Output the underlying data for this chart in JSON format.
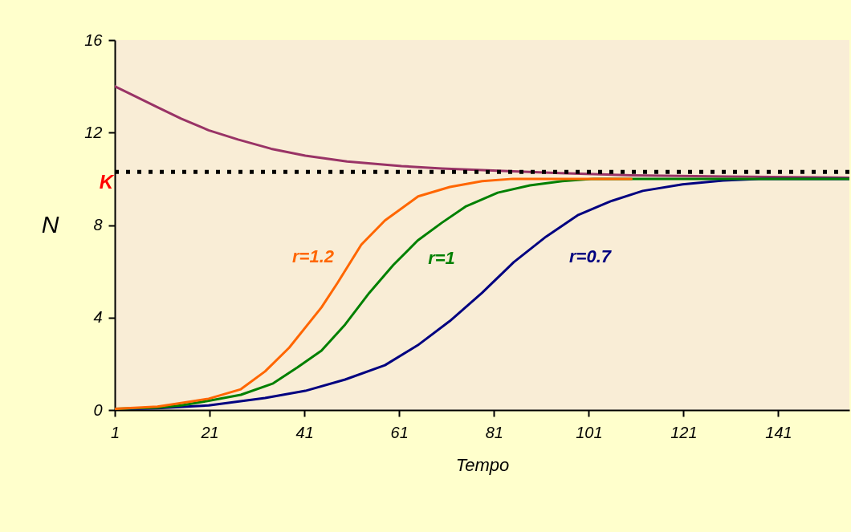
{
  "chart_data": {
    "type": "line",
    "xlabel": "Tempo",
    "ylabel": "N",
    "xlim": [
      1,
      156
    ],
    "ylim": [
      0,
      16
    ],
    "xticks": [
      1,
      21,
      41,
      61,
      81,
      101,
      121,
      141
    ],
    "yticks": [
      0,
      4,
      8,
      12,
      16
    ],
    "grid": false,
    "line_style": "solid",
    "marker": "none",
    "series": [
      {
        "color": "#ff6600",
        "x": [
          1,
          10,
          15,
          20.8,
          27.6,
          32.7,
          37.8,
          44.6,
          48,
          53,
          58,
          65,
          71.7,
          78.5,
          85,
          95,
          110
        ],
        "values": [
          0.05,
          0.15,
          0.3,
          0.49,
          0.9,
          1.67,
          2.7,
          4.44,
          5.5,
          7.15,
          8.2,
          9.24,
          9.65,
          9.9,
          10,
          10,
          10
        ]
      },
      {
        "color": "#008000",
        "x": [
          1,
          10,
          15,
          20.8,
          27.6,
          34.4,
          39.5,
          44.6,
          49.6,
          54.7,
          59.8,
          64.9,
          70,
          75,
          81.8,
          88.6,
          95.4,
          102,
          120,
          140,
          156
        ],
        "values": [
          0.05,
          0.1,
          0.2,
          0.4,
          0.66,
          1.15,
          1.84,
          2.57,
          3.7,
          5.07,
          6.28,
          7.33,
          8.1,
          8.8,
          9.4,
          9.72,
          9.9,
          10,
          10,
          10,
          10
        ]
      },
      {
        "color": "#000080",
        "x": [
          1,
          10,
          20.8,
          32.7,
          41.2,
          49.6,
          58,
          64.9,
          71.7,
          78.5,
          85.2,
          92,
          98.8,
          105.6,
          112.4,
          120.8,
          129.3,
          137.8,
          145,
          156
        ],
        "values": [
          0.02,
          0.08,
          0.2,
          0.52,
          0.83,
          1.32,
          1.94,
          2.8,
          3.85,
          5.07,
          6.4,
          7.5,
          8.44,
          9.03,
          9.48,
          9.76,
          9.93,
          10,
          10,
          10
        ]
      },
      {
        "color": "#993366",
        "x": [
          1,
          5,
          10,
          15,
          20.8,
          27,
          34,
          41.2,
          50,
          61.5,
          70,
          81.8,
          95,
          110,
          130,
          156
        ],
        "values": [
          14,
          13.6,
          13.1,
          12.6,
          12.1,
          11.7,
          11.3,
          11,
          10.75,
          10.55,
          10.45,
          10.35,
          10.25,
          10.15,
          10.1,
          10.05
        ]
      }
    ],
    "ref_lines": [
      {
        "axis": "y",
        "value": 10.3,
        "label": "K",
        "color": "#000000",
        "line_style": "dotted"
      }
    ],
    "annotations": [
      "r=1.2",
      "r=1",
      "r=0.7"
    ]
  }
}
